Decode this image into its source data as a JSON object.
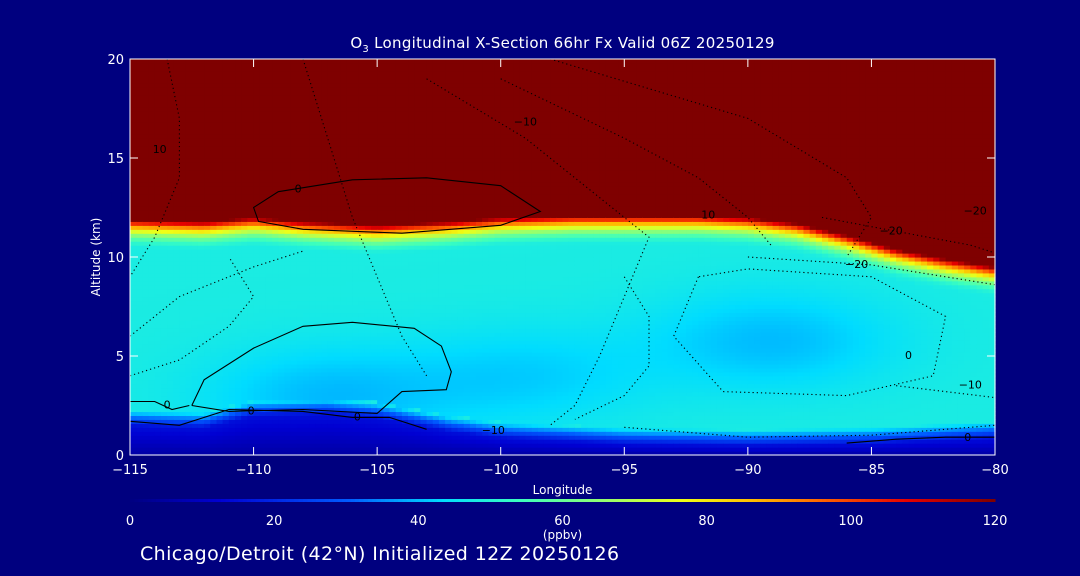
{
  "chart_data": {
    "type": "heatmap",
    "title_species": "O",
    "title_sub": "3",
    "title_rest": " Longitudinal X-Section 66hr  Fx Valid 06Z 20250129",
    "xlabel": "Longitude",
    "ylabel": "Altitude (km)",
    "x_ticks": [
      -115,
      -110,
      -105,
      -100,
      -95,
      -90,
      -85,
      -80
    ],
    "x_tick_labels": [
      "−115",
      "−110",
      "−105",
      "−100",
      "−95",
      "−90",
      "−85",
      "−80"
    ],
    "y_ticks": [
      0,
      5,
      10,
      15,
      20
    ],
    "xlim": [
      -115,
      -80
    ],
    "ylim": [
      0,
      20
    ],
    "colorbar": {
      "ticks": [
        0,
        20,
        40,
        60,
        80,
        100,
        120
      ],
      "range": [
        0,
        120
      ],
      "unit": "(ppbv)"
    },
    "fields": {
      "tropopause_height_km": [
        [
          -115,
          11.4
        ],
        [
          -112,
          11.3
        ],
        [
          -110,
          11.5
        ],
        [
          -108,
          11.3
        ],
        [
          -105,
          11.1
        ],
        [
          -102,
          11.3
        ],
        [
          -100,
          11.5
        ],
        [
          -97,
          11.6
        ],
        [
          -95,
          11.6
        ],
        [
          -92,
          11.6
        ],
        [
          -90,
          11.5
        ],
        [
          -88,
          11.2
        ],
        [
          -86,
          10.6
        ],
        [
          -84,
          9.9
        ],
        [
          -82,
          9.4
        ],
        [
          -80,
          9.0
        ]
      ],
      "surface_low_layer_top_km": [
        [
          -115,
          1.5
        ],
        [
          -112,
          1.4
        ],
        [
          -110,
          2.0
        ],
        [
          -107,
          2.1
        ],
        [
          -105,
          1.9
        ],
        [
          -102,
          1.2
        ],
        [
          -100,
          0.9
        ],
        [
          -95,
          0.6
        ],
        [
          -90,
          0.5
        ],
        [
          -85,
          0.6
        ],
        [
          -80,
          0.9
        ]
      ],
      "background_ppbv": 48,
      "stratosphere_ppbv": 120,
      "cores": [
        {
          "lon": -89,
          "alt": 5.8,
          "ppbv": 40
        },
        {
          "lon": -107,
          "alt": 3.0,
          "ppbv": 40
        },
        {
          "lon": -99,
          "alt": 4.0,
          "ppbv": 42
        }
      ]
    },
    "contour_labels": [
      "0",
      "0",
      "0",
      "0",
      "0",
      "−10",
      "−10",
      "10",
      "10",
      "−20",
      "−20",
      "−20",
      "−10",
      "0"
    ]
  },
  "footer": "Chicago/Detroit (42°N) Initialized 12Z 20250126"
}
